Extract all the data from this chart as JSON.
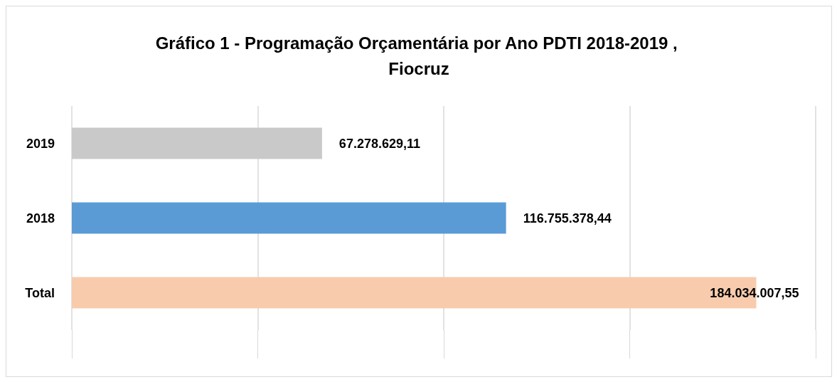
{
  "chart_data": {
    "type": "bar",
    "orientation": "horizontal",
    "title": "Gráfico 1 - Programação Orçamentária por Ano PDTI 2018-2019 , Fiocruz",
    "categories": [
      "2019",
      "2018",
      "Total"
    ],
    "values": [
      67278629.11,
      116755378.44,
      184034007.55
    ],
    "colors": [
      "#c9c9c9",
      "#5b9bd5",
      "#f8cbad"
    ],
    "value_labels": [
      "67.278.629,11",
      "116.755.378,44",
      "184.034.007,55"
    ],
    "xlim": [
      0,
      200000000
    ],
    "xticks": [
      {
        "value": 0,
        "label": null
      },
      {
        "value": 50000000,
        "label": null
      },
      {
        "value": 100000000,
        "label": null
      },
      {
        "value": 150000000,
        "label": null
      },
      {
        "value": 200000000,
        "label": null
      }
    ],
    "grid": "x",
    "tick_labels": "y"
  }
}
